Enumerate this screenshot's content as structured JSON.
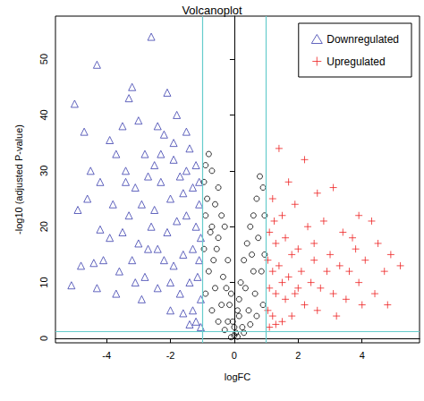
{
  "chart_data": {
    "type": "scatter",
    "title": "Volcanoplot",
    "x_label": "logFC",
    "y_label": "-log10 (adjusted P-value)",
    "xlim": [
      -5.6,
      5.8
    ],
    "xticks": [
      -4,
      -2,
      0,
      2,
      4
    ],
    "ylim": [
      -0.8,
      57.7
    ],
    "yticks": [
      0,
      10,
      20,
      30,
      40,
      50
    ],
    "grid": false,
    "legend": "top-right",
    "vlines": [
      -1,
      1
    ],
    "hlines": [
      1.3
    ],
    "line_color": "#66cccc",
    "series": [
      {
        "name": "Downregulated",
        "color": "#3b3fae",
        "marker": "triangle",
        "values": [
          [
            -2.6,
            54
          ],
          [
            -4.3,
            49
          ],
          [
            -5,
            42
          ],
          [
            -3.2,
            45
          ],
          [
            -3.3,
            43
          ],
          [
            -2.1,
            44
          ],
          [
            -1.8,
            40
          ],
          [
            -4.7,
            37
          ],
          [
            -3.9,
            35.5
          ],
          [
            -3.5,
            38
          ],
          [
            -3,
            39
          ],
          [
            -2.4,
            38
          ],
          [
            -2.2,
            36.5
          ],
          [
            -1.5,
            37
          ],
          [
            -3.7,
            33
          ],
          [
            -4.5,
            30
          ],
          [
            -4.2,
            28
          ],
          [
            -2.8,
            33
          ],
          [
            -2.5,
            31
          ],
          [
            -1.9,
            32
          ],
          [
            -1.4,
            34
          ],
          [
            -3.4,
            30
          ],
          [
            -3.1,
            27
          ],
          [
            -2.7,
            29
          ],
          [
            -2.3,
            28
          ],
          [
            -1.7,
            29
          ],
          [
            -1.2,
            31
          ],
          [
            -4.9,
            23
          ],
          [
            -4.6,
            25
          ],
          [
            -3.8,
            24
          ],
          [
            -3.3,
            22
          ],
          [
            -2.9,
            24
          ],
          [
            -2.5,
            23
          ],
          [
            -2.0,
            25
          ],
          [
            -1.6,
            26
          ],
          [
            -1.3,
            27
          ],
          [
            -1.1,
            24
          ],
          [
            -5.1,
            9.5
          ],
          [
            -4.8,
            13
          ],
          [
            -4.4,
            13.5
          ],
          [
            -4.1,
            14
          ],
          [
            -3.6,
            12
          ],
          [
            -3.2,
            14
          ],
          [
            -2.8,
            11
          ],
          [
            -2.4,
            16
          ],
          [
            -2.1,
            19
          ],
          [
            -1.8,
            21
          ],
          [
            -1.5,
            22
          ],
          [
            -1.2,
            20
          ],
          [
            -1.05,
            18
          ],
          [
            -3.9,
            18
          ],
          [
            -3.5,
            19
          ],
          [
            -3.0,
            17
          ],
          [
            -2.6,
            20
          ],
          [
            -2.2,
            14
          ],
          [
            -1.9,
            13
          ],
          [
            -1.6,
            15
          ],
          [
            -1.3,
            16
          ],
          [
            -1.1,
            14
          ],
          [
            -4.3,
            9
          ],
          [
            -3.7,
            8
          ],
          [
            -2.9,
            7
          ],
          [
            -2.4,
            9
          ],
          [
            -2.0,
            10
          ],
          [
            -1.7,
            8
          ],
          [
            -1.4,
            10
          ],
          [
            -1.15,
            11
          ],
          [
            -1.05,
            7
          ],
          [
            -1.3,
            5
          ],
          [
            -1.6,
            4.5
          ],
          [
            -2.0,
            5
          ],
          [
            -1.2,
            3
          ],
          [
            -1.05,
            2
          ],
          [
            -1.4,
            2.5
          ],
          [
            -4.2,
            19.5
          ],
          [
            -3.4,
            28
          ],
          [
            -2.3,
            33
          ],
          [
            -1.9,
            35
          ],
          [
            -1.5,
            30
          ],
          [
            -1.1,
            28
          ],
          [
            -2.7,
            16
          ],
          [
            -3.1,
            10
          ]
        ]
      },
      {
        "name": "Upregulated",
        "color": "#ee2222",
        "marker": "plus",
        "values": [
          [
            1.4,
            34
          ],
          [
            2.2,
            32
          ],
          [
            1.7,
            28
          ],
          [
            2.6,
            26
          ],
          [
            3.1,
            27
          ],
          [
            3.9,
            22
          ],
          [
            4.3,
            21
          ],
          [
            4.9,
            15
          ],
          [
            5.2,
            13
          ],
          [
            1.2,
            25
          ],
          [
            1.5,
            22
          ],
          [
            1.9,
            24
          ],
          [
            2.3,
            20
          ],
          [
            2.8,
            21
          ],
          [
            3.4,
            19
          ],
          [
            3.7,
            18
          ],
          [
            4.5,
            17
          ],
          [
            4.1,
            14
          ],
          [
            4.7,
            12
          ],
          [
            1.1,
            19
          ],
          [
            1.3,
            17
          ],
          [
            1.6,
            18
          ],
          [
            2.0,
            16
          ],
          [
            2.5,
            17
          ],
          [
            3.0,
            15
          ],
          [
            3.3,
            13
          ],
          [
            3.6,
            12
          ],
          [
            3.9,
            10
          ],
          [
            4.4,
            8
          ],
          [
            4.8,
            6
          ],
          [
            1.05,
            14
          ],
          [
            1.2,
            12
          ],
          [
            1.4,
            13
          ],
          [
            1.7,
            11
          ],
          [
            2.1,
            12
          ],
          [
            2.4,
            10
          ],
          [
            2.7,
            9
          ],
          [
            3.1,
            8
          ],
          [
            3.5,
            7
          ],
          [
            4.0,
            6
          ],
          [
            1.1,
            9
          ],
          [
            1.3,
            8
          ],
          [
            1.6,
            7
          ],
          [
            1.9,
            8
          ],
          [
            2.2,
            6
          ],
          [
            2.6,
            5
          ],
          [
            3.2,
            4
          ],
          [
            1.05,
            5
          ],
          [
            1.2,
            4
          ],
          [
            1.5,
            3
          ],
          [
            1.8,
            4
          ],
          [
            1.1,
            2
          ],
          [
            1.3,
            2.5
          ],
          [
            2.9,
            12
          ],
          [
            3.8,
            16
          ],
          [
            2.5,
            14
          ],
          [
            1.8,
            15
          ],
          [
            1.25,
            21
          ],
          [
            1.5,
            10
          ],
          [
            2.0,
            9
          ]
        ]
      },
      {
        "color": "#000000",
        "marker": "circle",
        "values": [
          [
            -0.8,
            33
          ],
          [
            -0.9,
            31
          ],
          [
            -0.7,
            30
          ],
          [
            -0.5,
            27
          ],
          [
            -0.95,
            28
          ],
          [
            -0.85,
            25
          ],
          [
            -0.6,
            24
          ],
          [
            -0.4,
            22
          ],
          [
            -0.3,
            20
          ],
          [
            -0.9,
            22
          ],
          [
            -0.7,
            20
          ],
          [
            -0.5,
            18
          ],
          [
            -0.2,
            14
          ],
          [
            -0.1,
            8
          ],
          [
            0,
            2
          ],
          [
            0.05,
            1
          ],
          [
            -0.05,
            3
          ],
          [
            0.1,
            5
          ],
          [
            0.2,
            10
          ],
          [
            0.3,
            14
          ],
          [
            0.4,
            17
          ],
          [
            0.5,
            20
          ],
          [
            0.6,
            22
          ],
          [
            0.7,
            25
          ],
          [
            0.8,
            29
          ],
          [
            0.9,
            27
          ],
          [
            0.95,
            22
          ],
          [
            0.75,
            18
          ],
          [
            0.55,
            15
          ],
          [
            0.35,
            9
          ],
          [
            0.15,
            4
          ],
          [
            -0.15,
            6
          ],
          [
            -0.35,
            11
          ],
          [
            -0.55,
            16
          ],
          [
            -0.75,
            19
          ],
          [
            -0.95,
            16
          ],
          [
            -0.8,
            12
          ],
          [
            -0.6,
            9
          ],
          [
            -0.4,
            6
          ],
          [
            -0.2,
            3
          ],
          [
            0,
            0.5
          ],
          [
            0.25,
            2
          ],
          [
            0.45,
            5
          ],
          [
            0.65,
            8
          ],
          [
            0.85,
            12
          ],
          [
            0.95,
            15
          ],
          [
            -0.9,
            8
          ],
          [
            -0.7,
            5
          ],
          [
            -0.5,
            3
          ],
          [
            -0.3,
            1.5
          ],
          [
            0.3,
            1
          ],
          [
            0.5,
            2.5
          ],
          [
            0.7,
            4
          ],
          [
            0.9,
            6
          ],
          [
            -0.1,
            0.2
          ],
          [
            0.1,
            0.3
          ],
          [
            -0.65,
            14
          ],
          [
            0.6,
            12
          ],
          [
            -0.25,
            9
          ],
          [
            0.15,
            7
          ]
        ]
      }
    ]
  }
}
